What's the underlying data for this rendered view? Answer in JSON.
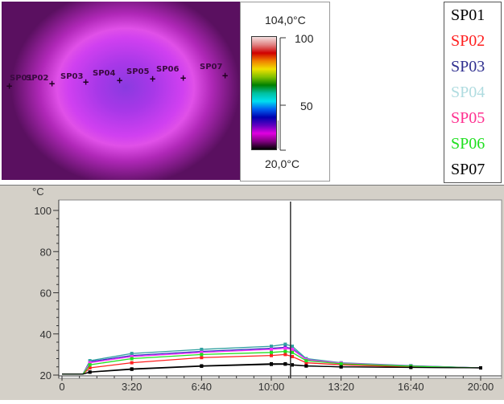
{
  "thermal": {
    "spot_labels": [
      "SP01",
      "SP02",
      "SP03",
      "SP04",
      "SP05",
      "SP06",
      "SP07"
    ],
    "scale_max": "104,0°C",
    "scale_min": "20,0°C",
    "scale_ticks": [
      "100",
      "50"
    ]
  },
  "legend": [
    {
      "name": "SP01",
      "color": "#000000"
    },
    {
      "name": "SP02",
      "color": "#ff2020"
    },
    {
      "name": "SP03",
      "color": "#303090"
    },
    {
      "name": "SP04",
      "color": "#b0dce0"
    },
    {
      "name": "SP05",
      "color": "#ff3090"
    },
    {
      "name": "SP06",
      "color": "#20e020"
    },
    {
      "name": "SP07",
      "color": "#000000"
    }
  ],
  "chart_data": {
    "type": "line",
    "ylabel": "°C",
    "xlabel": "",
    "ylim": [
      20,
      100
    ],
    "xlim_seconds": [
      0,
      1240
    ],
    "yticks": [
      "20",
      "40",
      "60",
      "80",
      "100"
    ],
    "xticks": [
      "0",
      "3:20",
      "6:40",
      "10:00",
      "13:20",
      "16:40",
      "20:00"
    ],
    "xtick_seconds": [
      0,
      200,
      400,
      600,
      800,
      1000,
      1200
    ],
    "cursor_seconds": 655,
    "x": [
      0,
      60,
      80,
      200,
      400,
      600,
      640,
      660,
      700,
      800,
      1000,
      1200
    ],
    "series": [
      {
        "name": "SP01",
        "color": "#000000",
        "values": [
          20.5,
          20.5,
          21.5,
          23,
          24.5,
          25.5,
          25.5,
          25,
          24.5,
          24,
          23.8,
          23.5
        ]
      },
      {
        "name": "SP02",
        "color": "#ff2020",
        "values": [
          20.5,
          20.5,
          23.5,
          26,
          28.5,
          29.5,
          30,
          29,
          26,
          25,
          24,
          23.5
        ]
      },
      {
        "name": "SP03",
        "color": "#3030c0",
        "values": [
          20.5,
          20.5,
          26.5,
          29.5,
          31.5,
          33,
          33.5,
          33,
          27.5,
          25.8,
          24.5,
          23.5
        ]
      },
      {
        "name": "SP04",
        "color": "#30a0a0",
        "values": [
          20.5,
          20.5,
          27,
          30.5,
          32.5,
          34,
          35,
          34,
          28,
          26,
          24.6,
          23.5
        ]
      },
      {
        "name": "SP05",
        "color": "#ff30ff",
        "values": [
          20.5,
          20.5,
          26,
          29,
          31,
          32.5,
          33,
          32.5,
          27.5,
          25.8,
          24.4,
          23.5
        ]
      },
      {
        "name": "SP06",
        "color": "#20e020",
        "values": [
          20.5,
          20.5,
          25,
          28,
          30,
          31,
          31.5,
          31,
          27,
          25.5,
          24.3,
          23.5
        ]
      },
      {
        "name": "SP07",
        "color": "#000000",
        "values": [
          20.5,
          20.5,
          21.4,
          22.8,
          24.3,
          25.2,
          25.3,
          24.9,
          24.4,
          24,
          23.7,
          23.5
        ]
      }
    ]
  }
}
